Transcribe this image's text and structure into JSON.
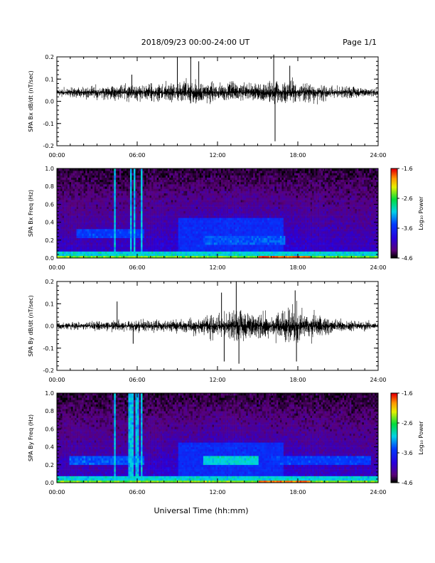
{
  "header": {
    "title": "2018/09/23  00:00-24:00 UT",
    "page": "Page 1/1"
  },
  "footer": {
    "xlabel": "Universal Time (hh:mm)"
  },
  "colorbar": {
    "label": "Log₁₀ Power",
    "ticks": [
      -1.6,
      -2.6,
      -3.6,
      -4.6
    ],
    "tick_labels": [
      "-1.6",
      "-2.6",
      "-3.6",
      "-4.6"
    ],
    "range": [
      -4.6,
      -1.6
    ]
  },
  "chart_data": [
    {
      "type": "line",
      "panel": "bx-waveform",
      "ylabel": "SPA Bx dB/dt (nT/sec)",
      "xlim": [
        0,
        24
      ],
      "ylim": [
        -0.2,
        0.2
      ],
      "xticks": [
        "00:00",
        "06:00",
        "12:00",
        "18:00",
        "24:00"
      ],
      "yticks": [
        "0.2",
        "0.1",
        "0.0",
        "-0.1",
        "-0.2"
      ],
      "baseline": 0.04,
      "envelope": {
        "hours": [
          0,
          2,
          3,
          5,
          6,
          8,
          9,
          10,
          11,
          12,
          13,
          14,
          15,
          16,
          17,
          18,
          19,
          20,
          22,
          24
        ],
        "amplitude": [
          0.02,
          0.03,
          0.035,
          0.04,
          0.045,
          0.05,
          0.06,
          0.065,
          0.06,
          0.05,
          0.05,
          0.05,
          0.06,
          0.065,
          0.07,
          0.06,
          0.05,
          0.04,
          0.03,
          0.02
        ]
      },
      "spikes": [
        {
          "hour": 5.6,
          "value": 0.12
        },
        {
          "hour": 9.0,
          "value": 0.2
        },
        {
          "hour": 10.0,
          "value": 0.2
        },
        {
          "hour": 10.6,
          "value": 0.18
        },
        {
          "hour": 16.2,
          "value": 0.21
        },
        {
          "hour": 16.3,
          "value": -0.18
        },
        {
          "hour": 17.4,
          "value": 0.16
        }
      ]
    },
    {
      "type": "heatmap",
      "panel": "bx-spectrogram",
      "ylabel": "SPA Bx Freq (Hz)",
      "xlim": [
        0,
        24
      ],
      "ylim": [
        0.0,
        1.0
      ],
      "xticks": [
        "00:00",
        "06:00",
        "12:00",
        "18:00",
        "24:00"
      ],
      "yticks": [
        "1.0",
        "0.8",
        "0.6",
        "0.4",
        "0.2",
        "0.0"
      ],
      "zlim": [
        -4.6,
        -1.6
      ],
      "bright_columns_hours": [
        4.3,
        5.5,
        5.8,
        6.3
      ],
      "bands": [
        {
          "hours": [
            1.5,
            6.5
          ],
          "freq": 0.27,
          "level": -3.5
        },
        {
          "hours": [
            11,
            17
          ],
          "freq": 0.2,
          "level": -3.4
        }
      ]
    },
    {
      "type": "line",
      "panel": "by-waveform",
      "ylabel": "SPA By dB/dt (nT/sec)",
      "xlim": [
        0,
        24
      ],
      "ylim": [
        -0.2,
        0.2
      ],
      "xticks": [
        "00:00",
        "06:00",
        "12:00",
        "18:00",
        "24:00"
      ],
      "yticks": [
        "0.2",
        "0.1",
        "0.0",
        "-0.1",
        "-0.2"
      ],
      "baseline": 0.0,
      "envelope": {
        "hours": [
          0,
          2,
          3,
          5,
          6,
          8,
          9,
          10,
          11,
          12,
          13,
          14,
          15,
          16,
          17,
          18,
          19,
          20,
          22,
          24
        ],
        "amplitude": [
          0.02,
          0.02,
          0.025,
          0.03,
          0.035,
          0.03,
          0.035,
          0.045,
          0.06,
          0.07,
          0.08,
          0.08,
          0.07,
          0.07,
          0.09,
          0.1,
          0.07,
          0.05,
          0.03,
          0.02
        ]
      },
      "spikes": [
        {
          "hour": 4.5,
          "value": 0.11
        },
        {
          "hour": 5.7,
          "value": -0.08
        },
        {
          "hour": 12.3,
          "value": 0.15
        },
        {
          "hour": 12.5,
          "value": -0.16
        },
        {
          "hour": 13.4,
          "value": 0.2
        },
        {
          "hour": 13.6,
          "value": -0.17
        },
        {
          "hour": 17.8,
          "value": 0.16
        },
        {
          "hour": 17.9,
          "value": -0.16
        }
      ]
    },
    {
      "type": "heatmap",
      "panel": "by-spectrogram",
      "ylabel": "SPA By Freq (Hz)",
      "xlim": [
        0,
        24
      ],
      "ylim": [
        0.0,
        1.0
      ],
      "xticks": [
        "00:00",
        "06:00",
        "12:00",
        "18:00",
        "24:00"
      ],
      "yticks": [
        "1.0",
        "0.8",
        "0.6",
        "0.4",
        "0.2",
        "0.0"
      ],
      "zlim": [
        -4.6,
        -1.6
      ],
      "bright_columns_hours": [
        4.3,
        5.4,
        5.6,
        6.0,
        6.3
      ],
      "bands": [
        {
          "hours": [
            1.0,
            6.5
          ],
          "freq": 0.25,
          "level": -3.4
        },
        {
          "hours": [
            11,
            15
          ],
          "freq": 0.25,
          "level": -3.0
        },
        {
          "hours": [
            16,
            23.5
          ],
          "freq": 0.25,
          "level": -3.5
        }
      ]
    }
  ]
}
